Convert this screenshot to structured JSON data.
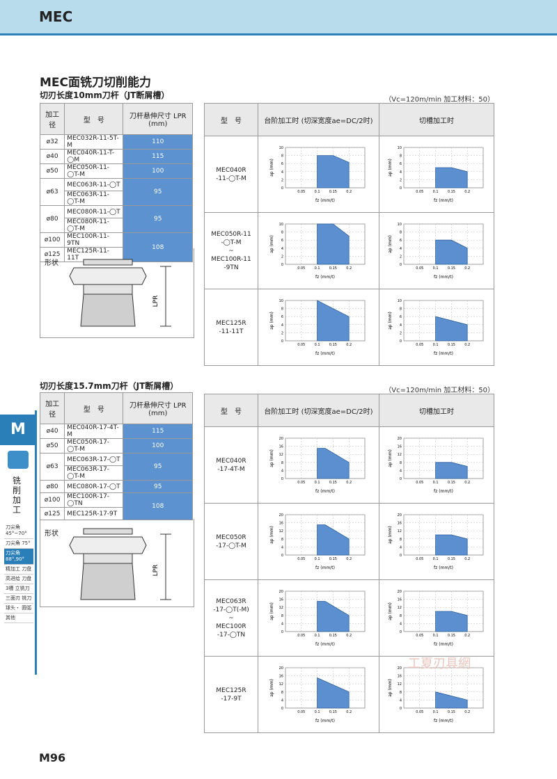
{
  "header": {
    "title": "MEC"
  },
  "page_title": "MEC面铣刀切削能力",
  "page_number": "M96",
  "side": {
    "tab": "M",
    "vertical": "铣削加工",
    "items": [
      "刀尖角 45°~70°",
      "刀尖角 75°",
      "刀尖角 88°,90°",
      "精加工 刀盘",
      "高进给 刀盘",
      "3槽 立铣刀",
      "三面刃 铣刀",
      "球头・ 圆弧",
      "其他"
    ]
  },
  "watermark": "工夏刃具網",
  "table_headers": {
    "dia": "加工径",
    "model": "型　号",
    "lpr": "刀杆悬伸尺寸 LPR (mm)",
    "shape": "形状"
  },
  "chart_headers": {
    "model": "型　号",
    "step": "台阶加工时 (切深宽度ae=DC/2时)",
    "slot": "切槽加工时"
  },
  "sections": [
    {
      "subtitle": "切刃长度10mm刀杆（JT断屑槽）",
      "condition": "（Vc=120m/min  加工材料：50）",
      "rows": [
        {
          "dia": "ø32",
          "models": [
            "MEC032R-11-5T-M"
          ],
          "lpr": "110"
        },
        {
          "dia": "ø40",
          "models": [
            "MEC040R-11-T-◯M"
          ],
          "lpr": "115"
        },
        {
          "dia": "ø50",
          "models": [
            "MEC050R-11-◯T-M"
          ],
          "lpr": "100"
        },
        {
          "dia": "ø63",
          "models": [
            "MEC063R-11-◯T",
            "MEC063R-11-◯T-M"
          ],
          "lpr": "95"
        },
        {
          "dia": "ø80",
          "models": [
            "MEC080R-11-◯T",
            "MEC080R-11-◯T-M"
          ],
          "lpr": "95"
        },
        {
          "dia": "ø100",
          "models": [
            "MEC100R-11-9TN"
          ],
          "lpr": "108"
        },
        {
          "dia": "ø125",
          "models": [
            "MEC125R-11-11T"
          ],
          "lpr": null
        }
      ],
      "chart_rows": [
        {
          "model": [
            "MEC040R",
            "-11-◯T-M"
          ]
        },
        {
          "model": [
            "MEC050R-11",
            "-◯T-M",
            "~",
            "MEC100R-11",
            "-9TN"
          ]
        },
        {
          "model": [
            "MEC125R",
            "-11-11T"
          ]
        }
      ]
    },
    {
      "subtitle": "切刃长度15.7mm刀杆（JT断屑槽）",
      "condition": "（Vc=120m/min  加工材料：50）",
      "rows": [
        {
          "dia": "ø40",
          "models": [
            "MEC040R-17-4T-M"
          ],
          "lpr": "115"
        },
        {
          "dia": "ø50",
          "models": [
            "MEC050R-17-◯T-M"
          ],
          "lpr": "100"
        },
        {
          "dia": "ø63",
          "models": [
            "MEC063R-17-◯T",
            "MEC063R-17-◯T-M"
          ],
          "lpr": "95"
        },
        {
          "dia": "ø80",
          "models": [
            "MEC080R-17-◯T"
          ],
          "lpr": "95"
        },
        {
          "dia": "ø100",
          "models": [
            "MEC100R-17-◯TN"
          ],
          "lpr": "108"
        },
        {
          "dia": "ø125",
          "models": [
            "MEC125R-17-9T"
          ],
          "lpr": null
        }
      ],
      "chart_rows": [
        {
          "model": [
            "MEC040R",
            "-17-4T-M"
          ]
        },
        {
          "model": [
            "MEC050R",
            "-17-◯T-M"
          ]
        },
        {
          "model": [
            "MEC063R",
            "-17-◯T(-M)",
            "~",
            "MEC100R",
            "-17-◯TN"
          ]
        },
        {
          "model": [
            "MEC125R",
            "-17-9T"
          ]
        }
      ]
    }
  ],
  "chart_data": [
    {
      "type": "area",
      "id": "s1r1-step",
      "x": [
        0.1,
        0.15,
        0.2
      ],
      "y": [
        8,
        8,
        6.3
      ],
      "xlim": [
        0,
        0.25
      ],
      "ylim": [
        0,
        10
      ],
      "xticks": [
        0.05,
        0.1,
        0.15,
        0.2
      ],
      "yticks": [
        2,
        4,
        6,
        8,
        10
      ],
      "xlabel": "fz (mm/t)",
      "ylabel": "ap (mm)"
    },
    {
      "type": "area",
      "id": "s1r1-slot",
      "x": [
        0.1,
        0.15,
        0.2
      ],
      "y": [
        5,
        5,
        4
      ],
      "xlim": [
        0,
        0.25
      ],
      "ylim": [
        0,
        10
      ],
      "xticks": [
        0.05,
        0.1,
        0.15,
        0.2
      ],
      "yticks": [
        2,
        4,
        6,
        8,
        10
      ],
      "xlabel": "fz (mm/t)",
      "ylabel": "ap (mm)"
    },
    {
      "type": "area",
      "id": "s1r2-step",
      "x": [
        0.1,
        0.15,
        0.2
      ],
      "y": [
        10,
        10,
        7
      ],
      "xlim": [
        0,
        0.25
      ],
      "ylim": [
        0,
        10
      ],
      "xticks": [
        0.05,
        0.1,
        0.15,
        0.2
      ],
      "yticks": [
        2,
        4,
        6,
        8,
        10
      ],
      "xlabel": "fz (mm/t)",
      "ylabel": "ap (mm)"
    },
    {
      "type": "area",
      "id": "s1r2-slot",
      "x": [
        0.1,
        0.15,
        0.2
      ],
      "y": [
        6,
        6,
        4
      ],
      "xlim": [
        0,
        0.25
      ],
      "ylim": [
        0,
        10
      ],
      "xticks": [
        0.05,
        0.1,
        0.15,
        0.2
      ],
      "yticks": [
        2,
        4,
        6,
        8,
        10
      ],
      "xlabel": "fz (mm/t)",
      "ylabel": "ap (mm)"
    },
    {
      "type": "area",
      "id": "s1r3-step",
      "x": [
        0.1,
        0.2
      ],
      "y": [
        10,
        6
      ],
      "xlim": [
        0,
        0.25
      ],
      "ylim": [
        0,
        10
      ],
      "xticks": [
        0.05,
        0.1,
        0.15,
        0.2
      ],
      "yticks": [
        2,
        4,
        6,
        8,
        10
      ],
      "xlabel": "fz (mm/t)",
      "ylabel": "ap (mm)"
    },
    {
      "type": "area",
      "id": "s1r3-slot",
      "x": [
        0.1,
        0.2
      ],
      "y": [
        6,
        4
      ],
      "xlim": [
        0,
        0.25
      ],
      "ylim": [
        0,
        10
      ],
      "xticks": [
        0.05,
        0.1,
        0.15,
        0.2
      ],
      "yticks": [
        2,
        4,
        6,
        8,
        10
      ],
      "xlabel": "fz (mm/t)",
      "ylabel": "ap (mm)"
    },
    {
      "type": "area",
      "id": "s2r1-step",
      "x": [
        0.1,
        0.125,
        0.2
      ],
      "y": [
        15,
        15,
        8
      ],
      "xlim": [
        0,
        0.25
      ],
      "ylim": [
        0,
        20
      ],
      "xticks": [
        0.05,
        0.1,
        0.15,
        0.2
      ],
      "yticks": [
        4,
        8,
        12,
        16,
        20
      ],
      "xlabel": "fz (mm/t)",
      "ylabel": "ap (mm)"
    },
    {
      "type": "area",
      "id": "s2r1-slot",
      "x": [
        0.1,
        0.15,
        0.2
      ],
      "y": [
        8,
        8,
        6
      ],
      "xlim": [
        0,
        0.25
      ],
      "ylim": [
        0,
        20
      ],
      "xticks": [
        0.05,
        0.1,
        0.15,
        0.2
      ],
      "yticks": [
        4,
        8,
        12,
        16,
        20
      ],
      "xlabel": "fz (mm/t)",
      "ylabel": "ap (mm)"
    },
    {
      "type": "area",
      "id": "s2r2-step",
      "x": [
        0.1,
        0.125,
        0.2
      ],
      "y": [
        15,
        15,
        8
      ],
      "xlim": [
        0,
        0.25
      ],
      "ylim": [
        0,
        20
      ],
      "xticks": [
        0.05,
        0.1,
        0.15,
        0.2
      ],
      "yticks": [
        4,
        8,
        12,
        16,
        20
      ],
      "xlabel": "fz (mm/t)",
      "ylabel": "ap (mm)"
    },
    {
      "type": "area",
      "id": "s2r2-slot",
      "x": [
        0.1,
        0.15,
        0.2
      ],
      "y": [
        10,
        10,
        8
      ],
      "xlim": [
        0,
        0.25
      ],
      "ylim": [
        0,
        20
      ],
      "xticks": [
        0.05,
        0.1,
        0.15,
        0.2
      ],
      "yticks": [
        4,
        8,
        12,
        16,
        20
      ],
      "xlabel": "fz (mm/t)",
      "ylabel": "ap (mm)"
    },
    {
      "type": "area",
      "id": "s2r3-step",
      "x": [
        0.1,
        0.125,
        0.2
      ],
      "y": [
        15,
        15,
        8
      ],
      "xlim": [
        0,
        0.25
      ],
      "ylim": [
        0,
        20
      ],
      "xticks": [
        0.05,
        0.1,
        0.15,
        0.2
      ],
      "yticks": [
        4,
        8,
        12,
        16,
        20
      ],
      "xlabel": "fz (mm/t)",
      "ylabel": "ap (mm)"
    },
    {
      "type": "area",
      "id": "s2r3-slot",
      "x": [
        0.1,
        0.15,
        0.2
      ],
      "y": [
        10,
        10,
        8
      ],
      "xlim": [
        0,
        0.25
      ],
      "ylim": [
        0,
        20
      ],
      "xticks": [
        0.05,
        0.1,
        0.15,
        0.2
      ],
      "yticks": [
        4,
        8,
        12,
        16,
        20
      ],
      "xlabel": "fz (mm/t)",
      "ylabel": "ap (mm)"
    },
    {
      "type": "area",
      "id": "s2r4-step",
      "x": [
        0.1,
        0.2
      ],
      "y": [
        15,
        8
      ],
      "xlim": [
        0,
        0.25
      ],
      "ylim": [
        0,
        20
      ],
      "xticks": [
        0.05,
        0.1,
        0.15,
        0.2
      ],
      "yticks": [
        4,
        8,
        12,
        16,
        20
      ],
      "xlabel": "fz (mm/t)",
      "ylabel": "ap (mm)"
    },
    {
      "type": "area",
      "id": "s2r4-slot",
      "x": [
        0.1,
        0.2
      ],
      "y": [
        8,
        4
      ],
      "xlim": [
        0,
        0.25
      ],
      "ylim": [
        0,
        20
      ],
      "xticks": [
        0.05,
        0.1,
        0.15,
        0.2
      ],
      "yticks": [
        4,
        8,
        12,
        16,
        20
      ],
      "xlabel": "fz (mm/t)",
      "ylabel": "ap (mm)"
    }
  ]
}
